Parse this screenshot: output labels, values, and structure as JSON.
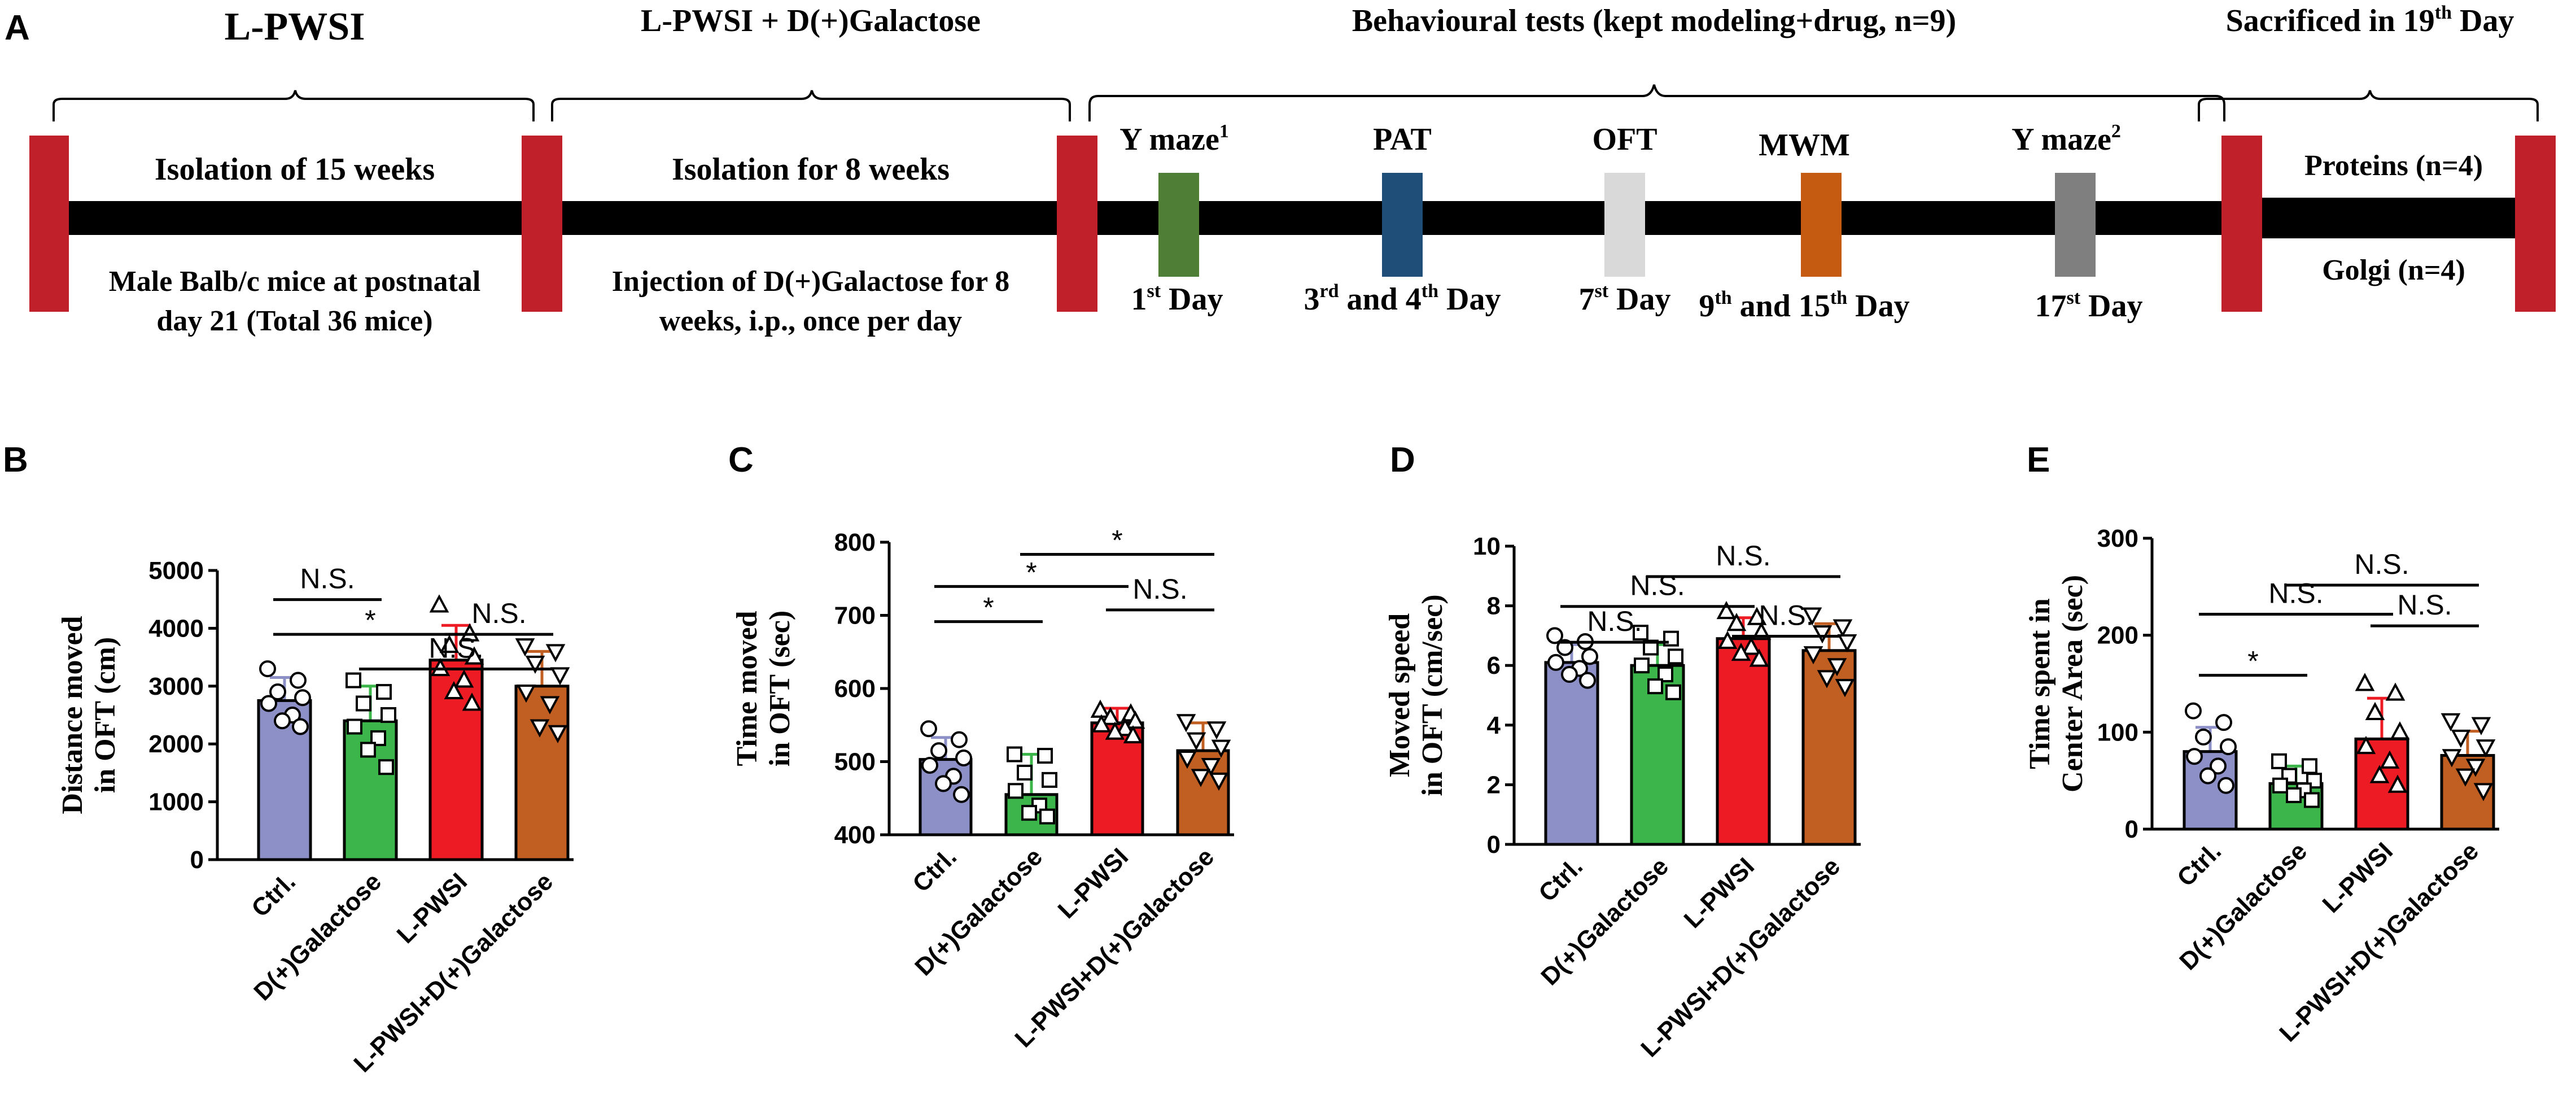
{
  "figure_labels": {
    "A": "A",
    "B": "B",
    "C": "C",
    "D": "D",
    "E": "E"
  },
  "timeline": {
    "phase1": {
      "title": "L-PWSI",
      "top": "Isolation of 15 weeks",
      "bottom1": "Male Balb/c mice at postnatal",
      "bottom2": "day 21 (Total 36 mice)"
    },
    "phase2": {
      "title": "L-PWSI + D(+)Galactose",
      "top": "Isolation for 8 weeks",
      "bottom1": "Injection of D(+)Galactose for 8",
      "bottom2": "weeks, i.p., once per day"
    },
    "phase3": {
      "title": "Behavioural tests (kept modeling+drug, n=9)",
      "tests": [
        {
          "name": "Y maze",
          "sup": "1",
          "day_pre": "1",
          "day_sup": "st",
          "day_post": " Day",
          "color": "#4f7f37"
        },
        {
          "name": "PAT",
          "sup": "",
          "day_pre": "3",
          "day_sup": "rd",
          "day_post": " and 4",
          "day_sup2": "th",
          "day_post2": " Day",
          "color": "#1f4e79"
        },
        {
          "name": "OFT",
          "sup": "",
          "day_pre": "7",
          "day_sup": "st",
          "day_post": " Day",
          "color": "#d9d9d9"
        },
        {
          "name": "MWM",
          "sup": "",
          "day_pre": "9",
          "day_sup": "th",
          "day_post": " and 15",
          "day_sup2": "th",
          "day_post2": " Day",
          "color": "#c55a11"
        },
        {
          "name": "Y maze",
          "sup": "2",
          "day_pre": "17",
          "day_sup": "st",
          "day_post": " Day",
          "color": "#7f7f7f"
        }
      ]
    },
    "phase4": {
      "title_pre": "Sacrificed in 19",
      "title_sup": "th",
      "title_post": " Day",
      "top": "Proteins (n=4)",
      "bottom": "Golgi (n=4)"
    },
    "bar_color": "#c0202a"
  },
  "chart_data": [
    {
      "panel": "B",
      "type": "bar",
      "categories": [
        "Ctrl.",
        "D(+)Galactose",
        "L-PWSI",
        "L-PWSI+D(+)Galactose"
      ],
      "values": [
        2750,
        2400,
        3450,
        3000
      ],
      "errors": [
        400,
        600,
        600,
        600
      ],
      "points": [
        [
          3300,
          3100,
          2900,
          2800,
          2700,
          2500,
          2400,
          2300
        ],
        [
          3100,
          2900,
          2700,
          2500,
          2300,
          2100,
          1900,
          1600
        ],
        [
          4400,
          3900,
          3700,
          3500,
          3300,
          3100,
          2900,
          2700
        ],
        [
          3700,
          3600,
          3400,
          3200,
          2900,
          2700,
          2300,
          2200
        ]
      ],
      "colors": [
        "#8d8fc7",
        "#3cb54a",
        "#ed1c24",
        "#c15f22"
      ],
      "ylabel": [
        "Distance moved",
        "in OFT (cm)"
      ],
      "ylim": [
        0,
        5000
      ],
      "yticks": [
        0,
        1000,
        2000,
        3000,
        4000,
        5000
      ],
      "significance": [
        {
          "from": 0,
          "to": 1,
          "label": "N.S."
        },
        {
          "from": 0,
          "to": 2,
          "label": "*"
        },
        {
          "from": 2,
          "to": 3,
          "label": "N.S."
        },
        {
          "from": 1,
          "to": 3,
          "label": "N.S."
        }
      ]
    },
    {
      "panel": "C",
      "type": "bar",
      "categories": [
        "Ctrl.",
        "D(+)Galactose",
        "L-PWSI",
        "L-PWSI+D(+)Galactose"
      ],
      "values": [
        503,
        455,
        553,
        515
      ],
      "errors": [
        30,
        55,
        20,
        38
      ],
      "points": [
        [
          545,
          530,
          515,
          505,
          495,
          480,
          470,
          455
        ],
        [
          510,
          508,
          485,
          475,
          460,
          440,
          430,
          425
        ],
        [
          570,
          565,
          560,
          555,
          550,
          545,
          540,
          535
        ],
        [
          555,
          545,
          530,
          520,
          505,
          495,
          480,
          475
        ]
      ],
      "colors": [
        "#8d8fc7",
        "#3cb54a",
        "#ed1c24",
        "#c15f22"
      ],
      "ylabel": [
        "Time moved",
        "in OFT (sec)"
      ],
      "ylim": [
        400,
        800
      ],
      "yticks": [
        400,
        500,
        600,
        700,
        800
      ],
      "significance": [
        {
          "from": 0,
          "to": 1,
          "label": "*"
        },
        {
          "from": 0,
          "to": 2,
          "label": "*"
        },
        {
          "from": 2,
          "to": 3,
          "label": "N.S."
        },
        {
          "from": 1,
          "to": 3,
          "label": "*"
        }
      ]
    },
    {
      "panel": "D",
      "type": "bar",
      "categories": [
        "Ctrl.",
        "D(+)Galactose",
        "L-PWSI",
        "L-PWSI+D(+)Galactose"
      ],
      "values": [
        6.1,
        6.0,
        6.9,
        6.5
      ],
      "errors": [
        0.6,
        0.7,
        0.7,
        0.9
      ],
      "points": [
        [
          7.0,
          6.8,
          6.6,
          6.3,
          6.1,
          5.9,
          5.7,
          5.5
        ],
        [
          7.1,
          6.9,
          6.6,
          6.3,
          6.0,
          5.7,
          5.3,
          5.1
        ],
        [
          7.8,
          7.6,
          7.4,
          7.1,
          6.8,
          6.6,
          6.4,
          6.2
        ],
        [
          7.7,
          7.3,
          7.1,
          6.8,
          6.4,
          6.0,
          5.6,
          5.3
        ]
      ],
      "colors": [
        "#8d8fc7",
        "#3cb54a",
        "#ed1c24",
        "#c15f22"
      ],
      "ylabel": [
        "Moved speed",
        "in OFT (cm/sec)"
      ],
      "ylim": [
        0,
        10
      ],
      "yticks": [
        0,
        2,
        4,
        6,
        8,
        10
      ],
      "significance": [
        {
          "from": 0,
          "to": 1,
          "label": "N.S."
        },
        {
          "from": 0,
          "to": 2,
          "label": "N.S."
        },
        {
          "from": 2,
          "to": 3,
          "label": "N.S."
        },
        {
          "from": 1,
          "to": 3,
          "label": "N.S."
        }
      ]
    },
    {
      "panel": "E",
      "type": "bar",
      "categories": [
        "Ctrl.",
        "D(+)Galactose",
        "L-PWSI",
        "L-PWSI+D(+)Galactose"
      ],
      "values": [
        80,
        47,
        93,
        76
      ],
      "errors": [
        25,
        18,
        42,
        25
      ],
      "points": [
        [
          122,
          110,
          95,
          85,
          75,
          65,
          55,
          45
        ],
        [
          70,
          65,
          55,
          50,
          45,
          40,
          35,
          30
        ],
        [
          150,
          140,
          120,
          100,
          85,
          70,
          55,
          45
        ],
        [
          112,
          108,
          95,
          85,
          75,
          65,
          55,
          40
        ]
      ],
      "colors": [
        "#8d8fc7",
        "#3cb54a",
        "#ed1c24",
        "#c15f22"
      ],
      "ylabel": [
        "Time spent in",
        "Center Area (sec)"
      ],
      "ylim": [
        0,
        300
      ],
      "yticks": [
        0,
        100,
        200,
        300
      ],
      "significance": [
        {
          "from": 0,
          "to": 1,
          "label": "*"
        },
        {
          "from": 0,
          "to": 2,
          "label": "N.S."
        },
        {
          "from": 2,
          "to": 3,
          "label": "N.S."
        },
        {
          "from": 1,
          "to": 3,
          "label": "N.S."
        }
      ]
    }
  ]
}
